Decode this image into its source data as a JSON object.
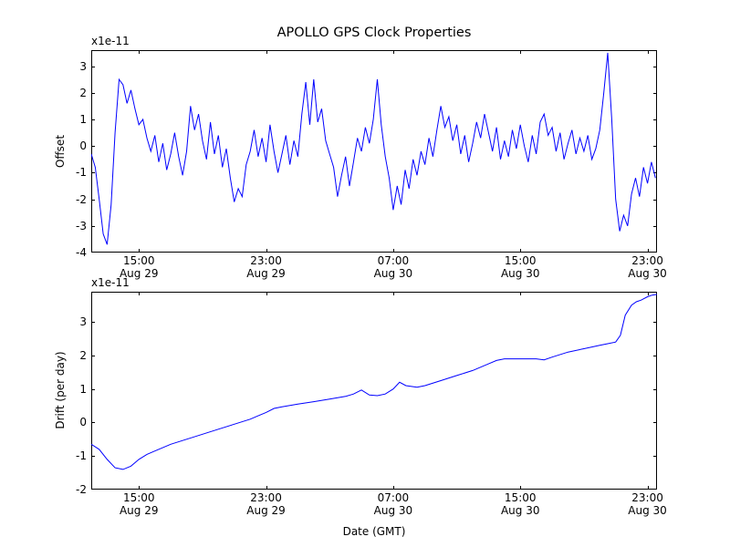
{
  "chart_data": {
    "type": "line",
    "title": "APOLLO GPS Clock Properties",
    "xlabel": "Date (GMT)",
    "line_color": "#0000ff",
    "frame_color": "#000000",
    "xlim": [
      0,
      35.6
    ],
    "xticks": [
      {
        "x": 3,
        "time": "15:00",
        "date": "Aug 29"
      },
      {
        "x": 11,
        "time": "23:00",
        "date": "Aug 29"
      },
      {
        "x": 19,
        "time": "07:00",
        "date": "Aug 30"
      },
      {
        "x": 27,
        "time": "15:00",
        "date": "Aug 30"
      },
      {
        "x": 35,
        "time": "23:00",
        "date": "Aug 30"
      }
    ],
    "charts": [
      {
        "name": "offset",
        "ylabel": "Offset",
        "scale_label": "x1e-11",
        "ylim": [
          -4,
          3.6
        ],
        "yticks": [
          3,
          2,
          1,
          0,
          -1,
          -2,
          -3,
          -4
        ],
        "x_start": 0,
        "x_step": 0.25,
        "values": [
          -0.3,
          -0.8,
          -2.0,
          -3.3,
          -3.7,
          -2.2,
          0.5,
          2.5,
          2.3,
          1.6,
          2.1,
          1.4,
          0.8,
          1.0,
          0.3,
          -0.2,
          0.4,
          -0.6,
          0.1,
          -0.9,
          -0.3,
          0.5,
          -0.4,
          -1.1,
          -0.2,
          1.5,
          0.6,
          1.2,
          0.2,
          -0.5,
          0.9,
          -0.3,
          0.4,
          -0.8,
          -0.1,
          -1.2,
          -2.1,
          -1.6,
          -1.9,
          -0.7,
          -0.2,
          0.6,
          -0.4,
          0.3,
          -0.6,
          0.8,
          -0.2,
          -1.0,
          -0.3,
          0.4,
          -0.7,
          0.2,
          -0.4,
          1.2,
          2.4,
          0.8,
          2.5,
          0.9,
          1.4,
          0.2,
          -0.3,
          -0.8,
          -1.9,
          -1.1,
          -0.4,
          -1.5,
          -0.6,
          0.3,
          -0.2,
          0.7,
          0.1,
          1.0,
          2.5,
          0.8,
          -0.4,
          -1.2,
          -2.4,
          -1.5,
          -2.2,
          -0.9,
          -1.6,
          -0.5,
          -1.1,
          -0.2,
          -0.7,
          0.3,
          -0.4,
          0.6,
          1.5,
          0.7,
          1.1,
          0.2,
          0.8,
          -0.3,
          0.4,
          -0.6,
          0.1,
          0.9,
          0.3,
          1.2,
          0.5,
          -0.2,
          0.7,
          -0.5,
          0.2,
          -0.4,
          0.6,
          -0.1,
          0.8,
          0.0,
          -0.6,
          0.4,
          -0.3,
          0.9,
          1.2,
          0.4,
          0.7,
          -0.2,
          0.5,
          -0.5,
          0.1,
          0.6,
          -0.3,
          0.3,
          -0.2,
          0.4,
          -0.5,
          -0.1,
          0.6,
          2.0,
          3.5,
          1.0,
          -2.0,
          -3.2,
          -2.6,
          -3.0,
          -1.8,
          -1.2,
          -1.9,
          -0.8,
          -1.4,
          -0.6,
          -1.2
        ]
      },
      {
        "name": "drift",
        "ylabel": "Drift (per day)",
        "scale_label": "x1e-11",
        "ylim": [
          -2,
          3.9
        ],
        "yticks": [
          3,
          2,
          1,
          0,
          -1,
          -2
        ],
        "points": [
          [
            0,
            -0.65
          ],
          [
            0.5,
            -0.8
          ],
          [
            1,
            -1.1
          ],
          [
            1.5,
            -1.35
          ],
          [
            2,
            -1.4
          ],
          [
            2.5,
            -1.3
          ],
          [
            3,
            -1.1
          ],
          [
            3.5,
            -0.95
          ],
          [
            4,
            -0.85
          ],
          [
            5,
            -0.65
          ],
          [
            6,
            -0.5
          ],
          [
            7,
            -0.35
          ],
          [
            8,
            -0.2
          ],
          [
            9,
            -0.05
          ],
          [
            10,
            0.1
          ],
          [
            10.5,
            0.2
          ],
          [
            11,
            0.3
          ],
          [
            11.5,
            0.42
          ],
          [
            12,
            0.47
          ],
          [
            13,
            0.55
          ],
          [
            14,
            0.62
          ],
          [
            15,
            0.7
          ],
          [
            16,
            0.78
          ],
          [
            16.5,
            0.85
          ],
          [
            17,
            0.97
          ],
          [
            17.5,
            0.82
          ],
          [
            18,
            0.8
          ],
          [
            18.5,
            0.85
          ],
          [
            19,
            1.0
          ],
          [
            19.4,
            1.2
          ],
          [
            19.8,
            1.1
          ],
          [
            20.5,
            1.05
          ],
          [
            21,
            1.1
          ],
          [
            22,
            1.25
          ],
          [
            23,
            1.4
          ],
          [
            24,
            1.55
          ],
          [
            25,
            1.75
          ],
          [
            25.5,
            1.85
          ],
          [
            26,
            1.9
          ],
          [
            27,
            1.9
          ],
          [
            28,
            1.9
          ],
          [
            28.5,
            1.87
          ],
          [
            29,
            1.95
          ],
          [
            30,
            2.1
          ],
          [
            31,
            2.2
          ],
          [
            32,
            2.3
          ],
          [
            32.5,
            2.35
          ],
          [
            33,
            2.4
          ],
          [
            33.3,
            2.6
          ],
          [
            33.6,
            3.2
          ],
          [
            34,
            3.5
          ],
          [
            34.3,
            3.6
          ],
          [
            34.6,
            3.65
          ],
          [
            35,
            3.75
          ],
          [
            35.3,
            3.8
          ],
          [
            35.6,
            3.82
          ]
        ]
      }
    ]
  }
}
